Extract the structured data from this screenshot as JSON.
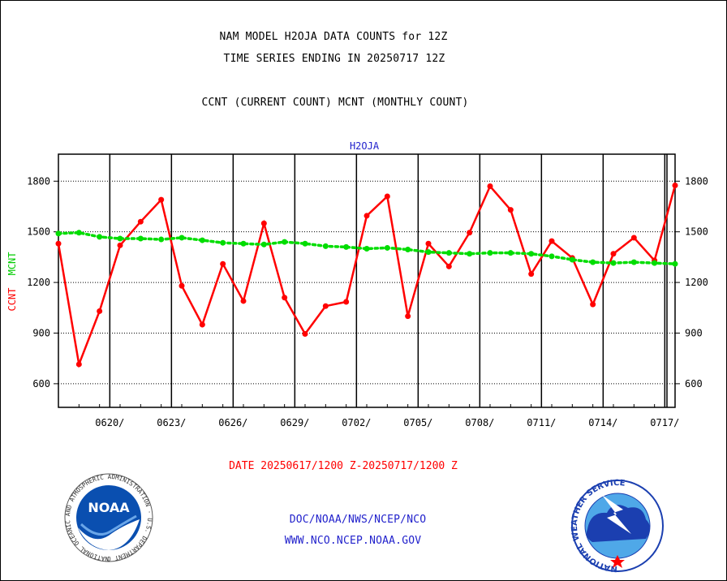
{
  "chart_data": {
    "type": "line",
    "title": "NAM MODEL H2OJA DATA COUNTS for 12Z",
    "subtitle": "TIME SERIES ENDING IN 20250717 12Z",
    "description": "CCNT (CURRENT COUNT) MCNT (MONTHLY COUNT)",
    "plot_label": "H2OJA",
    "ylabel_left_ccnt": "CCNT",
    "ylabel_left_mcnt": "MCNT",
    "xlabel": "DATE 20250617/1200 Z-20250717/1200 Z",
    "ylim": [
      460,
      1960
    ],
    "y_ticks": [
      600,
      900,
      1200,
      1500,
      1800
    ],
    "y_tick_labels": [
      "600",
      "900",
      "1200",
      "1500",
      "1800"
    ],
    "x_days": [
      0,
      1,
      2,
      3,
      4,
      5,
      6,
      7,
      8,
      9,
      10,
      11,
      12,
      13,
      14,
      15,
      16,
      17,
      18,
      19,
      20,
      21,
      22,
      23,
      24,
      25,
      26,
      27,
      28,
      29,
      30
    ],
    "x_ticks": [
      2.5,
      5.5,
      8.5,
      11.5,
      14.5,
      17.5,
      20.5,
      23.5,
      26.5,
      29.5
    ],
    "x_tick_labels": [
      "0620/",
      "0623/",
      "0626/",
      "0629/",
      "0702/",
      "0705/",
      "0708/",
      "0711/",
      "0714/",
      "0717/"
    ],
    "series": [
      {
        "name": "CCNT",
        "color": "#ff0000",
        "values": [
          1430,
          715,
          1030,
          1420,
          1560,
          1690,
          1180,
          950,
          1310,
          1090,
          1550,
          1110,
          895,
          1060,
          1085,
          1595,
          1710,
          1000,
          1430,
          1295,
          1495,
          1770,
          1630,
          1250,
          1445,
          1345,
          1070,
          1370,
          1465,
          1330,
          1775
        ]
      },
      {
        "name": "MCNT",
        "color": "#00dd00",
        "values": [
          1490,
          1495,
          1470,
          1460,
          1460,
          1455,
          1465,
          1450,
          1435,
          1430,
          1425,
          1440,
          1430,
          1415,
          1410,
          1400,
          1405,
          1395,
          1380,
          1375,
          1370,
          1375,
          1375,
          1370,
          1355,
          1335,
          1320,
          1315,
          1320,
          1315,
          1310
        ]
      }
    ]
  },
  "footer": {
    "line1": "DOC/NOAA/NWS/NCEP/NCO",
    "line2": "WWW.NCO.NCEP.NOAA.GOV",
    "noaa_logo_text": "NOAA",
    "noaa_ring_text": "NATIONAL OCEANIC AND ATMOSPHERIC ADMINISTRATION · U.S. DEPARTMENT OF COMMERCE ·",
    "nws_ring_text": "NATIONAL WEATHER SERVICE"
  },
  "colors": {
    "axis": "#000000",
    "footer_text": "#2222cc",
    "date_text": "#ff0000",
    "plot_label": "#2222cc"
  }
}
